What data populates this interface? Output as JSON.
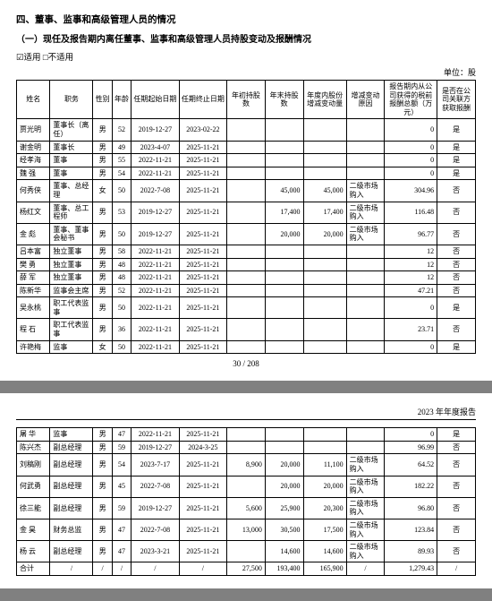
{
  "section_heading": "四、董事、监事和高级管理人员的情况",
  "sub_heading": "（一）现任及报告期内离任董事、监事和高级管理人员持股变动及报酬情况",
  "applicable_line": {
    "checked": "☑适用",
    "unchecked": "□不适用"
  },
  "unit_label": "单位：股",
  "page_number": "30 / 208",
  "report_title": "2023 年年度报告",
  "table1": {
    "headers": [
      "姓名",
      "职务",
      "性别",
      "年龄",
      "任期起始日期",
      "任期终止日期",
      "年初持股数",
      "年末持股数",
      "年度内股份增减变动量",
      "增减变动原因",
      "报告期内从公司获得的税前报酬总额（万元）",
      "是否在公司关联方获取报酬"
    ],
    "col_widths": [
      "7%",
      "9%",
      "4%",
      "4%",
      "10%",
      "10%",
      "8%",
      "8%",
      "9%",
      "8%",
      "11%",
      "8%"
    ],
    "rows": [
      [
        "贾光明",
        "董事长（离任）",
        "男",
        "52",
        "2019-12-27",
        "2023-02-22",
        "",
        "",
        "",
        "",
        "0",
        "是"
      ],
      [
        "谢金明",
        "董事长",
        "男",
        "49",
        "2023-4-07",
        "2025-11-21",
        "",
        "",
        "",
        "",
        "0",
        "是"
      ],
      [
        "经孝海",
        "董事",
        "男",
        "55",
        "2022-11-21",
        "2025-11-21",
        "",
        "",
        "",
        "",
        "0",
        "是"
      ],
      [
        "魏 强",
        "董事",
        "男",
        "54",
        "2022-11-21",
        "2025-11-21",
        "",
        "",
        "",
        "",
        "0",
        "是"
      ],
      [
        "何秀侠",
        "董事、总经理",
        "女",
        "50",
        "2022-7-08",
        "2025-11-21",
        "",
        "45,000",
        "45,000",
        "二级市场购入",
        "304.96",
        "否"
      ],
      [
        "杨红文",
        "董事、总工程师",
        "男",
        "53",
        "2019-12-27",
        "2025-11-21",
        "",
        "17,400",
        "17,400",
        "二级市场购入",
        "116.48",
        "否"
      ],
      [
        "金 彪",
        "董事、董事会秘书",
        "男",
        "50",
        "2019-12-27",
        "2025-11-21",
        "",
        "20,000",
        "20,000",
        "二级市场购入",
        "96.77",
        "否"
      ],
      [
        "吕本富",
        "独立董事",
        "男",
        "58",
        "2022-11-21",
        "2025-11-21",
        "",
        "",
        "",
        "",
        "12",
        "否"
      ],
      [
        "樊 勇",
        "独立董事",
        "男",
        "48",
        "2022-11-21",
        "2025-11-21",
        "",
        "",
        "",
        "",
        "12",
        "否"
      ],
      [
        "薛 军",
        "独立董事",
        "男",
        "48",
        "2022-11-21",
        "2025-11-21",
        "",
        "",
        "",
        "",
        "12",
        "否"
      ],
      [
        "陈新华",
        "监事会主席",
        "男",
        "52",
        "2022-11-21",
        "2025-11-21",
        "",
        "",
        "",
        "",
        "47.21",
        "否"
      ],
      [
        "吴永桃",
        "职工代表监事",
        "男",
        "50",
        "2022-11-21",
        "2025-11-21",
        "",
        "",
        "",
        "",
        "0",
        "是"
      ],
      [
        "程 石",
        "职工代表监事",
        "男",
        "36",
        "2022-11-21",
        "2025-11-21",
        "",
        "",
        "",
        "",
        "23.71",
        "否"
      ],
      [
        "许艳梅",
        "监事",
        "女",
        "50",
        "2022-11-21",
        "2025-11-21",
        "",
        "",
        "",
        "",
        "0",
        "是"
      ]
    ]
  },
  "table2": {
    "col_widths": [
      "7%",
      "9%",
      "4%",
      "4%",
      "10%",
      "10%",
      "8%",
      "8%",
      "9%",
      "8%",
      "11%",
      "8%"
    ],
    "rows": [
      [
        "屠 华",
        "监事",
        "男",
        "47",
        "2022-11-21",
        "2025-11-21",
        "",
        "",
        "",
        "",
        "0",
        "是"
      ],
      [
        "陈兴杰",
        "副总经理",
        "男",
        "59",
        "2019-12-27",
        "2024-3-25",
        "",
        "",
        "",
        "",
        "96.99",
        "否"
      ],
      [
        "刘稿刚",
        "副总经理",
        "男",
        "54",
        "2023-7-17",
        "2025-11-21",
        "8,900",
        "20,000",
        "11,100",
        "二级市场购入",
        "64.52",
        "否"
      ],
      [
        "何武勇",
        "副总经理",
        "男",
        "45",
        "2022-7-08",
        "2025-11-21",
        "",
        "20,000",
        "20,000",
        "二级市场购入",
        "182.22",
        "否"
      ],
      [
        "徐三能",
        "副总经理",
        "男",
        "59",
        "2019-12-27",
        "2025-11-21",
        "5,600",
        "25,900",
        "20,300",
        "二级市场购入",
        "96.80",
        "否"
      ],
      [
        "金 昊",
        "财务总监",
        "男",
        "47",
        "2022-7-08",
        "2025-11-21",
        "13,000",
        "30,500",
        "17,500",
        "二级市场购入",
        "123.84",
        "否"
      ],
      [
        "杨 云",
        "副总经理",
        "男",
        "47",
        "2023-3-21",
        "2025-11-21",
        "",
        "14,600",
        "14,600",
        "二级市场购入",
        "89.93",
        "否"
      ],
      [
        "合计",
        "/",
        "/",
        "/",
        "/",
        "/",
        "27,500",
        "193,400",
        "165,900",
        "/",
        "1,279.43",
        "/"
      ]
    ]
  }
}
